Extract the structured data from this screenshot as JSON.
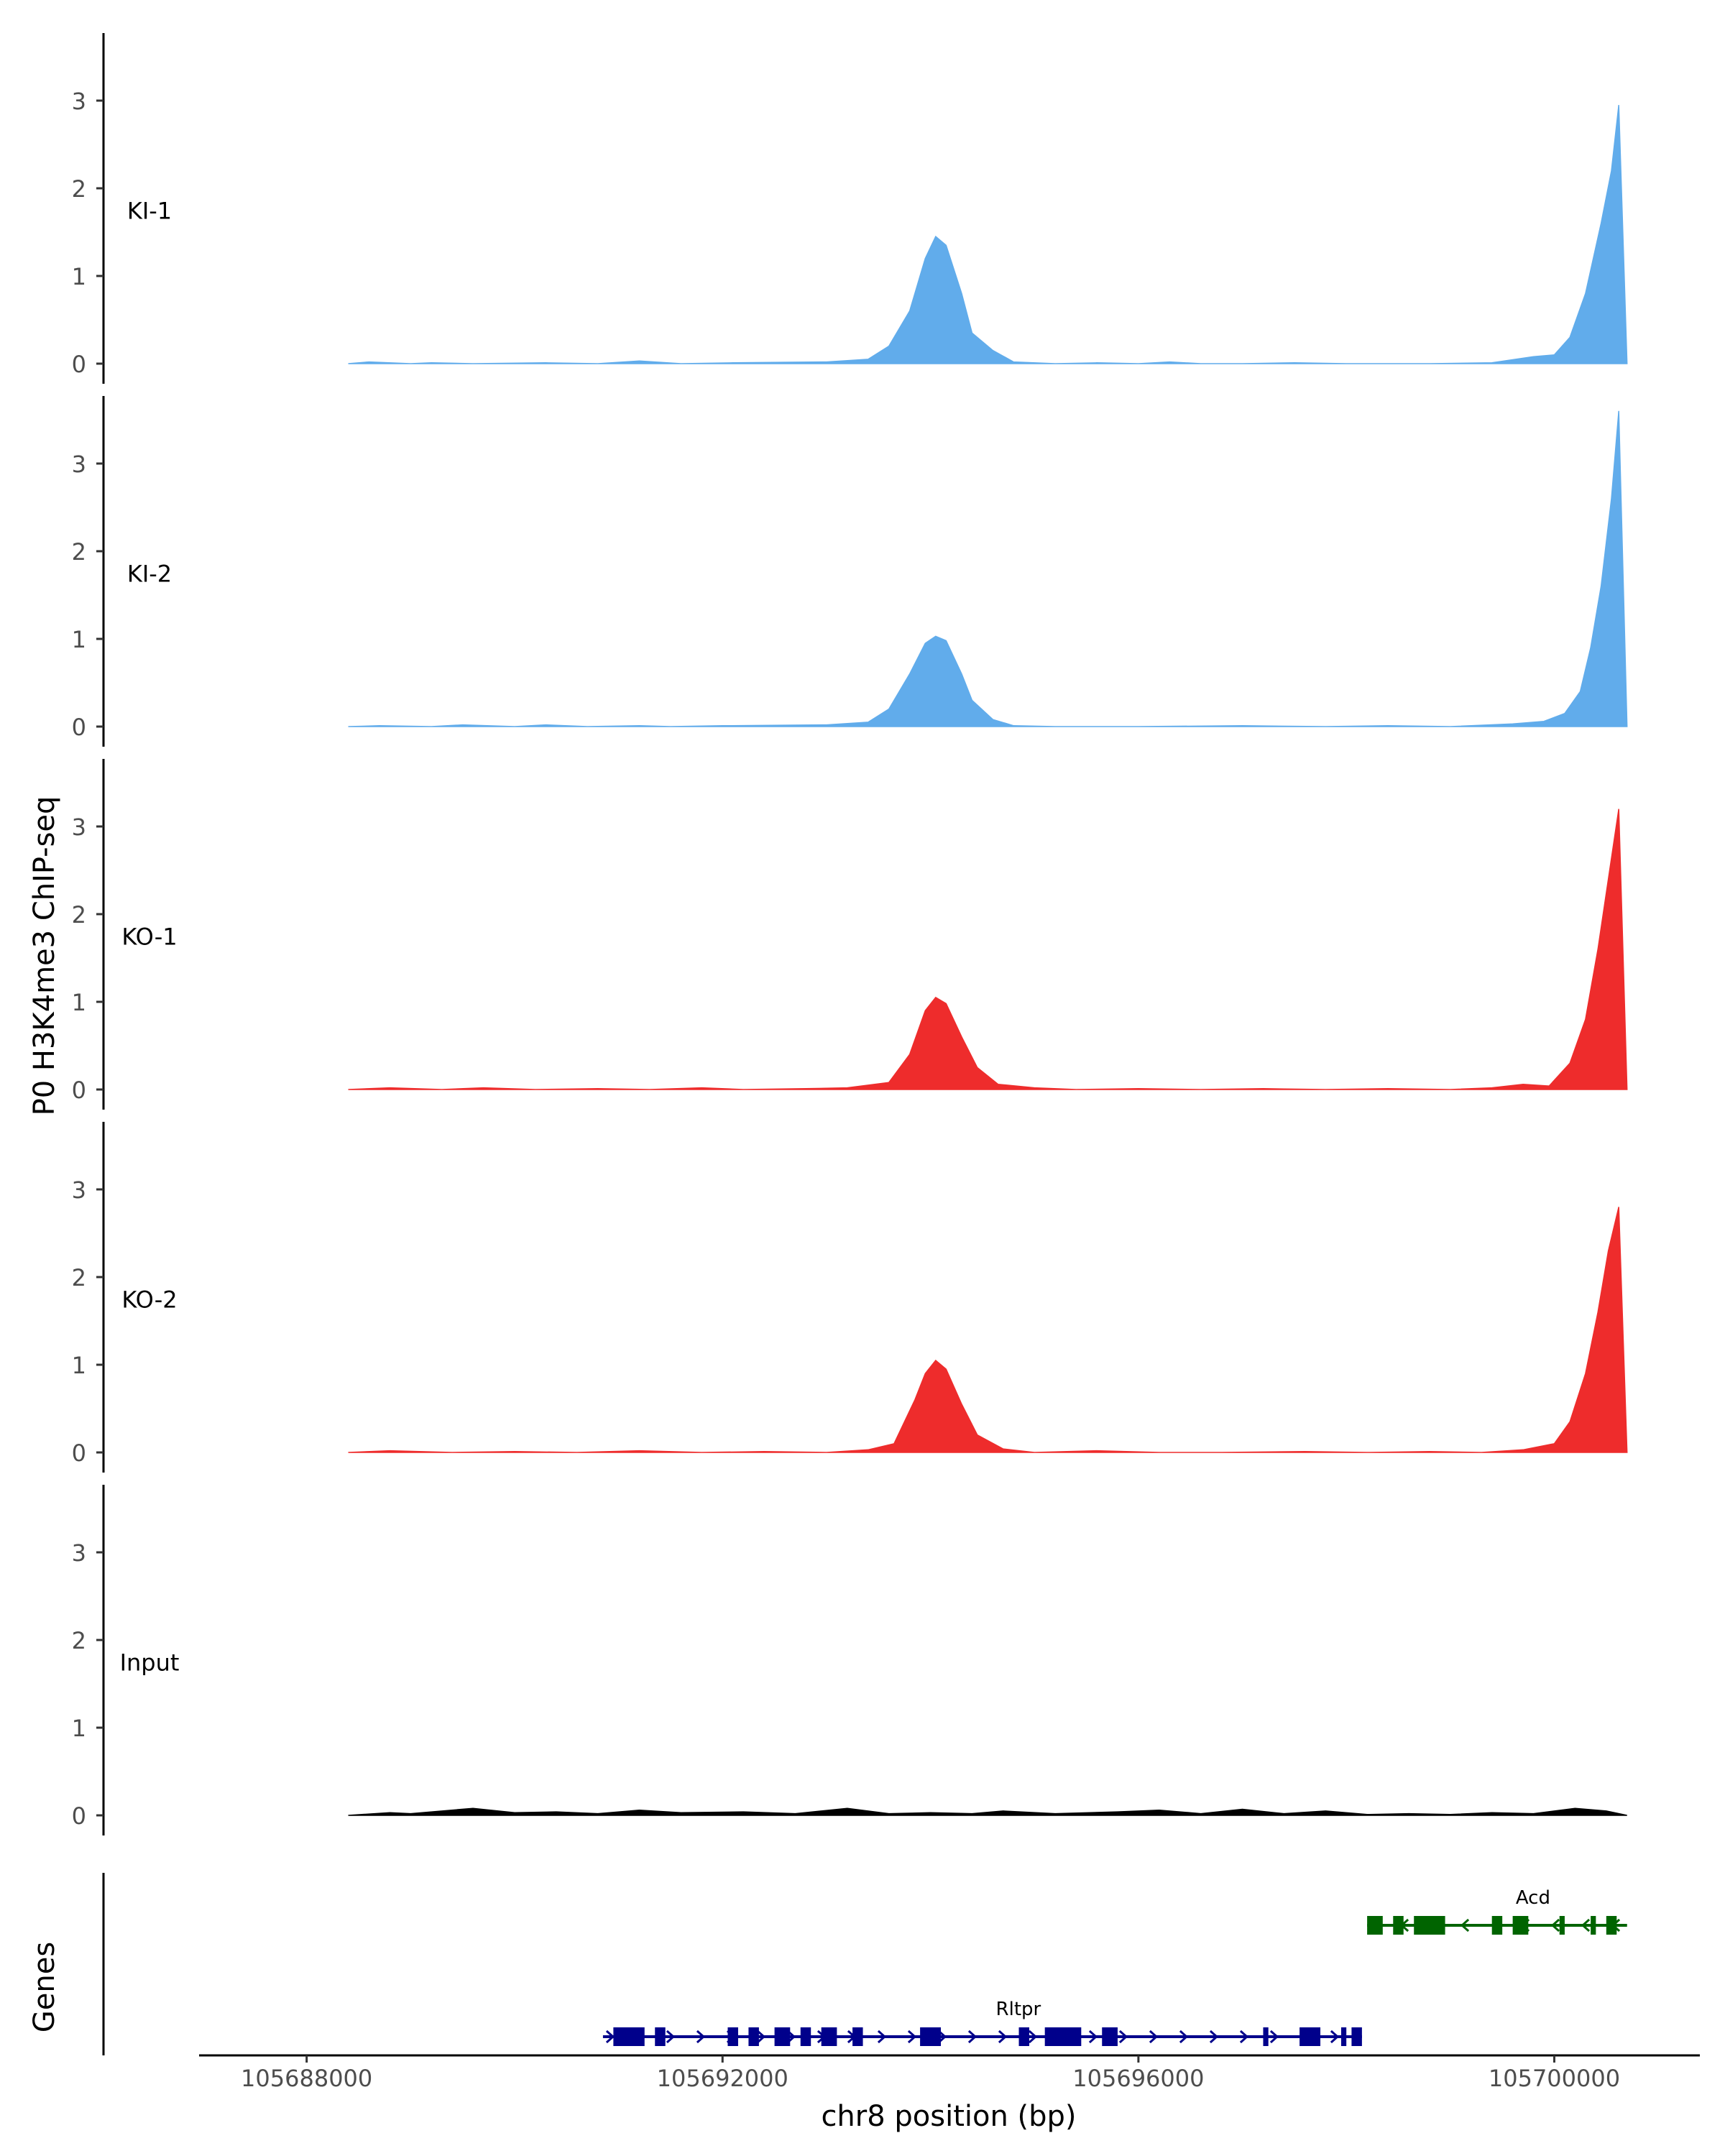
{
  "chart_data": {
    "type": "area",
    "ylabel": "P0 H3K4me3 ChIP-seq",
    "genes_label": "Genes",
    "xlabel": "chr8 position (bp)",
    "xlim": [
      105687000,
      105701400
    ],
    "ylim": [
      0,
      3.8
    ],
    "y_ticks": [
      0,
      1,
      2,
      3
    ],
    "x_ticks": [
      {
        "value": 105688000,
        "label": "105688000"
      },
      {
        "value": 105692000,
        "label": "105692000"
      },
      {
        "value": 105696000,
        "label": "105696000"
      },
      {
        "value": 105700000,
        "label": "105700000"
      }
    ],
    "tracks": [
      {
        "name": "KI-1",
        "color": "#61ACEB",
        "points": [
          [
            105688400,
            0
          ],
          [
            105688600,
            0.02
          ],
          [
            105689000,
            0
          ],
          [
            105689200,
            0.01
          ],
          [
            105689600,
            0
          ],
          [
            105690300,
            0.01
          ],
          [
            105690800,
            0
          ],
          [
            105691200,
            0.03
          ],
          [
            105691600,
            0
          ],
          [
            105692100,
            0.01
          ],
          [
            105693000,
            0.02
          ],
          [
            105693400,
            0.05
          ],
          [
            105693600,
            0.2
          ],
          [
            105693800,
            0.6
          ],
          [
            105693950,
            1.2
          ],
          [
            105694050,
            1.45
          ],
          [
            105694150,
            1.35
          ],
          [
            105694300,
            0.8
          ],
          [
            105694400,
            0.35
          ],
          [
            105694600,
            0.15
          ],
          [
            105694800,
            0.02
          ],
          [
            105695200,
            0
          ],
          [
            105695600,
            0.01
          ],
          [
            105696000,
            0
          ],
          [
            105696300,
            0.02
          ],
          [
            105696600,
            0
          ],
          [
            105697000,
            0
          ],
          [
            105697500,
            0.01
          ],
          [
            105698000,
            0
          ],
          [
            105698800,
            0
          ],
          [
            105699400,
            0.01
          ],
          [
            105699800,
            0.08
          ],
          [
            105700000,
            0.1
          ],
          [
            105700150,
            0.3
          ],
          [
            105700300,
            0.8
          ],
          [
            105700450,
            1.6
          ],
          [
            105700550,
            2.2
          ],
          [
            105700620,
            2.95
          ],
          [
            105700700,
            0
          ]
        ]
      },
      {
        "name": "KI-2",
        "color": "#61ACEB",
        "points": [
          [
            105688400,
            0
          ],
          [
            105688700,
            0.01
          ],
          [
            105689200,
            0
          ],
          [
            105689500,
            0.02
          ],
          [
            105690000,
            0
          ],
          [
            105690300,
            0.02
          ],
          [
            105690700,
            0
          ],
          [
            105691200,
            0.01
          ],
          [
            105691500,
            0
          ],
          [
            105692000,
            0.01
          ],
          [
            105693000,
            0.02
          ],
          [
            105693400,
            0.05
          ],
          [
            105693600,
            0.2
          ],
          [
            105693800,
            0.6
          ],
          [
            105693950,
            0.95
          ],
          [
            105694050,
            1.03
          ],
          [
            105694150,
            0.98
          ],
          [
            105694300,
            0.6
          ],
          [
            105694400,
            0.3
          ],
          [
            105694600,
            0.08
          ],
          [
            105694800,
            0.01
          ],
          [
            105695200,
            0
          ],
          [
            105696000,
            0
          ],
          [
            105697000,
            0.01
          ],
          [
            105697800,
            0
          ],
          [
            105698400,
            0.01
          ],
          [
            105699000,
            0
          ],
          [
            105699600,
            0.03
          ],
          [
            105699900,
            0.06
          ],
          [
            105700100,
            0.15
          ],
          [
            105700250,
            0.4
          ],
          [
            105700350,
            0.9
          ],
          [
            105700450,
            1.6
          ],
          [
            105700550,
            2.6
          ],
          [
            105700620,
            3.6
          ],
          [
            105700700,
            0
          ]
        ]
      },
      {
        "name": "KO-1",
        "color": "#EE2C2C",
        "points": [
          [
            105688400,
            0
          ],
          [
            105688800,
            0.02
          ],
          [
            105689300,
            0
          ],
          [
            105689700,
            0.02
          ],
          [
            105690200,
            0
          ],
          [
            105690800,
            0.01
          ],
          [
            105691300,
            0
          ],
          [
            105691800,
            0.02
          ],
          [
            105692200,
            0
          ],
          [
            105692800,
            0.01
          ],
          [
            105693200,
            0.02
          ],
          [
            105693600,
            0.08
          ],
          [
            105693800,
            0.4
          ],
          [
            105693950,
            0.9
          ],
          [
            105694050,
            1.05
          ],
          [
            105694150,
            0.98
          ],
          [
            105694300,
            0.6
          ],
          [
            105694450,
            0.25
          ],
          [
            105694650,
            0.06
          ],
          [
            105695000,
            0.02
          ],
          [
            105695400,
            0
          ],
          [
            105696000,
            0.01
          ],
          [
            105696600,
            0
          ],
          [
            105697200,
            0.01
          ],
          [
            105697800,
            0
          ],
          [
            105698400,
            0.01
          ],
          [
            105699000,
            0
          ],
          [
            105699400,
            0.02
          ],
          [
            105699700,
            0.06
          ],
          [
            105699950,
            0.04
          ],
          [
            105700150,
            0.3
          ],
          [
            105700300,
            0.8
          ],
          [
            105700420,
            1.6
          ],
          [
            105700520,
            2.4
          ],
          [
            105700620,
            3.2
          ],
          [
            105700700,
            0
          ]
        ]
      },
      {
        "name": "KO-2",
        "color": "#EE2C2C",
        "points": [
          [
            105688400,
            0
          ],
          [
            105688800,
            0.02
          ],
          [
            105689400,
            0
          ],
          [
            105690000,
            0.01
          ],
          [
            105690600,
            0
          ],
          [
            105691200,
            0.02
          ],
          [
            105691800,
            0
          ],
          [
            105692400,
            0.01
          ],
          [
            105693000,
            0
          ],
          [
            105693400,
            0.03
          ],
          [
            105693650,
            0.1
          ],
          [
            105693850,
            0.6
          ],
          [
            105693950,
            0.9
          ],
          [
            105694050,
            1.05
          ],
          [
            105694150,
            0.95
          ],
          [
            105694300,
            0.55
          ],
          [
            105694450,
            0.2
          ],
          [
            105694700,
            0.04
          ],
          [
            105695000,
            0
          ],
          [
            105695600,
            0.02
          ],
          [
            105696200,
            0
          ],
          [
            105696800,
            0
          ],
          [
            105697600,
            0.01
          ],
          [
            105698200,
            0
          ],
          [
            105698800,
            0.01
          ],
          [
            105699300,
            0
          ],
          [
            105699700,
            0.03
          ],
          [
            105700000,
            0.1
          ],
          [
            105700150,
            0.35
          ],
          [
            105700300,
            0.9
          ],
          [
            105700420,
            1.6
          ],
          [
            105700520,
            2.3
          ],
          [
            105700620,
            2.8
          ],
          [
            105700700,
            0
          ]
        ]
      },
      {
        "name": "Input",
        "color": "#000000",
        "points": [
          [
            105688400,
            0
          ],
          [
            105688800,
            0.03
          ],
          [
            105689000,
            0.02
          ],
          [
            105689600,
            0.08
          ],
          [
            105690000,
            0.03
          ],
          [
            105690400,
            0.04
          ],
          [
            105690800,
            0.02
          ],
          [
            105691200,
            0.06
          ],
          [
            105691600,
            0.03
          ],
          [
            105692200,
            0.04
          ],
          [
            105692700,
            0.02
          ],
          [
            105693200,
            0.08
          ],
          [
            105693600,
            0.02
          ],
          [
            105694000,
            0.03
          ],
          [
            105694400,
            0.02
          ],
          [
            105694700,
            0.05
          ],
          [
            105695200,
            0.02
          ],
          [
            105695800,
            0.04
          ],
          [
            105696200,
            0.06
          ],
          [
            105696600,
            0.02
          ],
          [
            105697000,
            0.07
          ],
          [
            105697400,
            0.02
          ],
          [
            105697800,
            0.05
          ],
          [
            105698200,
            0.01
          ],
          [
            105698600,
            0.02
          ],
          [
            105699000,
            0.01
          ],
          [
            105699400,
            0.03
          ],
          [
            105699800,
            0.02
          ],
          [
            105700200,
            0.08
          ],
          [
            105700500,
            0.05
          ],
          [
            105700700,
            0
          ]
        ]
      }
    ],
    "genes": [
      {
        "name": "Rltpr",
        "color": "#00008B",
        "strand": "+",
        "start": 105690850,
        "end": 105698150,
        "exons": [
          [
            105690950,
            105691250
          ],
          [
            105691350,
            105691450
          ],
          [
            105692050,
            105692150
          ],
          [
            105692250,
            105692350
          ],
          [
            105692500,
            105692650
          ],
          [
            105692750,
            105692850
          ],
          [
            105692950,
            105693100
          ],
          [
            105693250,
            105693350
          ],
          [
            105693900,
            105694100
          ],
          [
            105694850,
            105694950
          ],
          [
            105695100,
            105695450
          ],
          [
            105695650,
            105695800
          ],
          [
            105697200,
            105697250
          ],
          [
            105697550,
            105697750
          ],
          [
            105697950,
            105698000
          ],
          [
            105698050,
            105698150
          ]
        ]
      },
      {
        "name": "Acd",
        "color": "#006400",
        "strand": "-",
        "start": 105698200,
        "end": 105700700,
        "exons": [
          [
            105698200,
            105698350
          ],
          [
            105698450,
            105698550
          ],
          [
            105698650,
            105698950
          ],
          [
            105699400,
            105699500
          ],
          [
            105699600,
            105699750
          ],
          [
            105700050,
            105700100
          ],
          [
            105700350,
            105700400
          ],
          [
            105700500,
            105700600
          ]
        ]
      }
    ]
  }
}
